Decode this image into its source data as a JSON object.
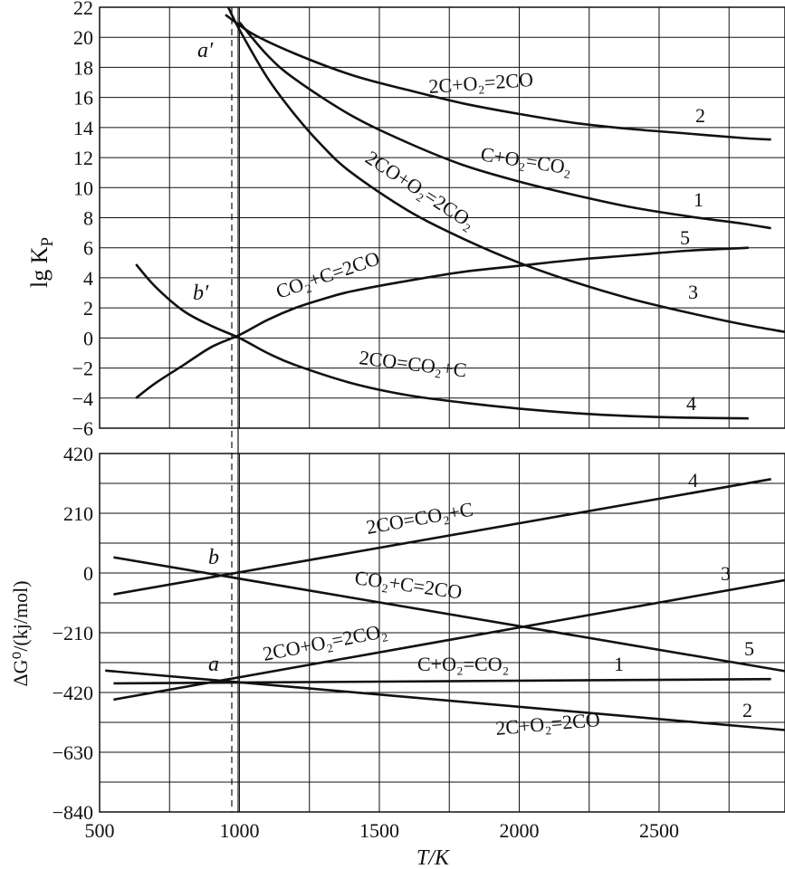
{
  "chart_data": [
    {
      "type": "line",
      "panel": "top",
      "ylabel_main": "lg K",
      "ylabel_sub": "P",
      "xlim": [
        500,
        2950
      ],
      "ylim": [
        -6,
        22
      ],
      "yticks": [
        "22",
        "20",
        "18",
        "16",
        "14",
        "12",
        "10",
        "8",
        "6",
        "4",
        "2",
        "0",
        "−2",
        "−4",
        "−6"
      ],
      "grid": true,
      "series": [
        {
          "name": "2C+O₂=2CO",
          "number": "2",
          "x": [
            950,
            1050,
            1200,
            1400,
            1600,
            1800,
            2000,
            2200,
            2400,
            2600,
            2800,
            2900
          ],
          "y": [
            21.5,
            20.2,
            18.9,
            17.5,
            16.5,
            15.6,
            14.9,
            14.3,
            13.9,
            13.6,
            13.3,
            13.2
          ]
        },
        {
          "name": "C+O₂=CO₂",
          "number": "1",
          "x": [
            1000,
            1100,
            1200,
            1400,
            1600,
            1800,
            2000,
            2200,
            2400,
            2600,
            2800,
            2900
          ],
          "y": [
            21.0,
            18.8,
            17.2,
            14.8,
            13.0,
            11.5,
            10.4,
            9.5,
            8.7,
            8.1,
            7.6,
            7.3
          ]
        },
        {
          "name": "2CO+O₂=2CO₂",
          "number": "3",
          "x": [
            960,
            1000,
            1100,
            1200,
            1300,
            1400,
            1600,
            1800,
            2000,
            2200,
            2400,
            2600,
            2800,
            2950
          ],
          "y": [
            22.0,
            20.5,
            17.3,
            14.8,
            12.7,
            11.0,
            8.5,
            6.6,
            5.0,
            3.7,
            2.6,
            1.7,
            0.9,
            0.4
          ]
        },
        {
          "name": "CO₂+C=2CO",
          "number": "5",
          "x": [
            630,
            700,
            800,
            900,
            1000,
            1100,
            1200,
            1300,
            1400,
            1600,
            1800,
            2000,
            2200,
            2400,
            2600,
            2820
          ],
          "y": [
            -4.0,
            -3.0,
            -1.8,
            -0.6,
            0.2,
            1.2,
            2.0,
            2.6,
            3.1,
            3.8,
            4.4,
            4.8,
            5.2,
            5.5,
            5.8,
            6.0
          ]
        },
        {
          "name": "2CO=CO₂+C",
          "number": "4",
          "x": [
            630,
            700,
            800,
            900,
            1000,
            1100,
            1200,
            1400,
            1600,
            1800,
            2000,
            2200,
            2400,
            2600,
            2820
          ],
          "y": [
            4.9,
            3.4,
            1.8,
            0.8,
            0.0,
            -1.0,
            -1.8,
            -3.0,
            -3.8,
            -4.3,
            -4.7,
            -5.0,
            -5.2,
            -5.3,
            -5.35
          ]
        }
      ],
      "annotations": [
        "a′",
        "b′"
      ]
    },
    {
      "type": "line",
      "panel": "bottom",
      "ylabel": "ΔG⁰/(kj/mol)",
      "xlabel": "T/K",
      "xlim": [
        500,
        2950
      ],
      "ylim": [
        -840,
        420
      ],
      "xticks": [
        "500",
        "1000",
        "1500",
        "2000",
        "2500"
      ],
      "yticks": [
        "420",
        "210",
        "0",
        "−210",
        "−420",
        "−630",
        "−840"
      ],
      "grid": true,
      "series": [
        {
          "name": "2CO=CO₂+C",
          "number": "4",
          "x": [
            550,
            2900
          ],
          "y": [
            -75,
            330
          ]
        },
        {
          "name": "CO₂+C=2CO",
          "number": "5",
          "x": [
            550,
            2950
          ],
          "y": [
            55,
            -345
          ]
        },
        {
          "name": "2CO+O₂=2CO₂",
          "number": "3",
          "x": [
            550,
            2950
          ],
          "y": [
            -445,
            -25
          ]
        },
        {
          "name": "C+O₂=CO₂",
          "number": "1",
          "x": [
            550,
            2900
          ],
          "y": [
            -388,
            -373
          ]
        },
        {
          "name": "2C+O₂=2CO",
          "number": "2",
          "x": [
            520,
            2950
          ],
          "y": [
            -343,
            -552
          ]
        }
      ],
      "annotations": [
        "a",
        "b"
      ]
    }
  ]
}
